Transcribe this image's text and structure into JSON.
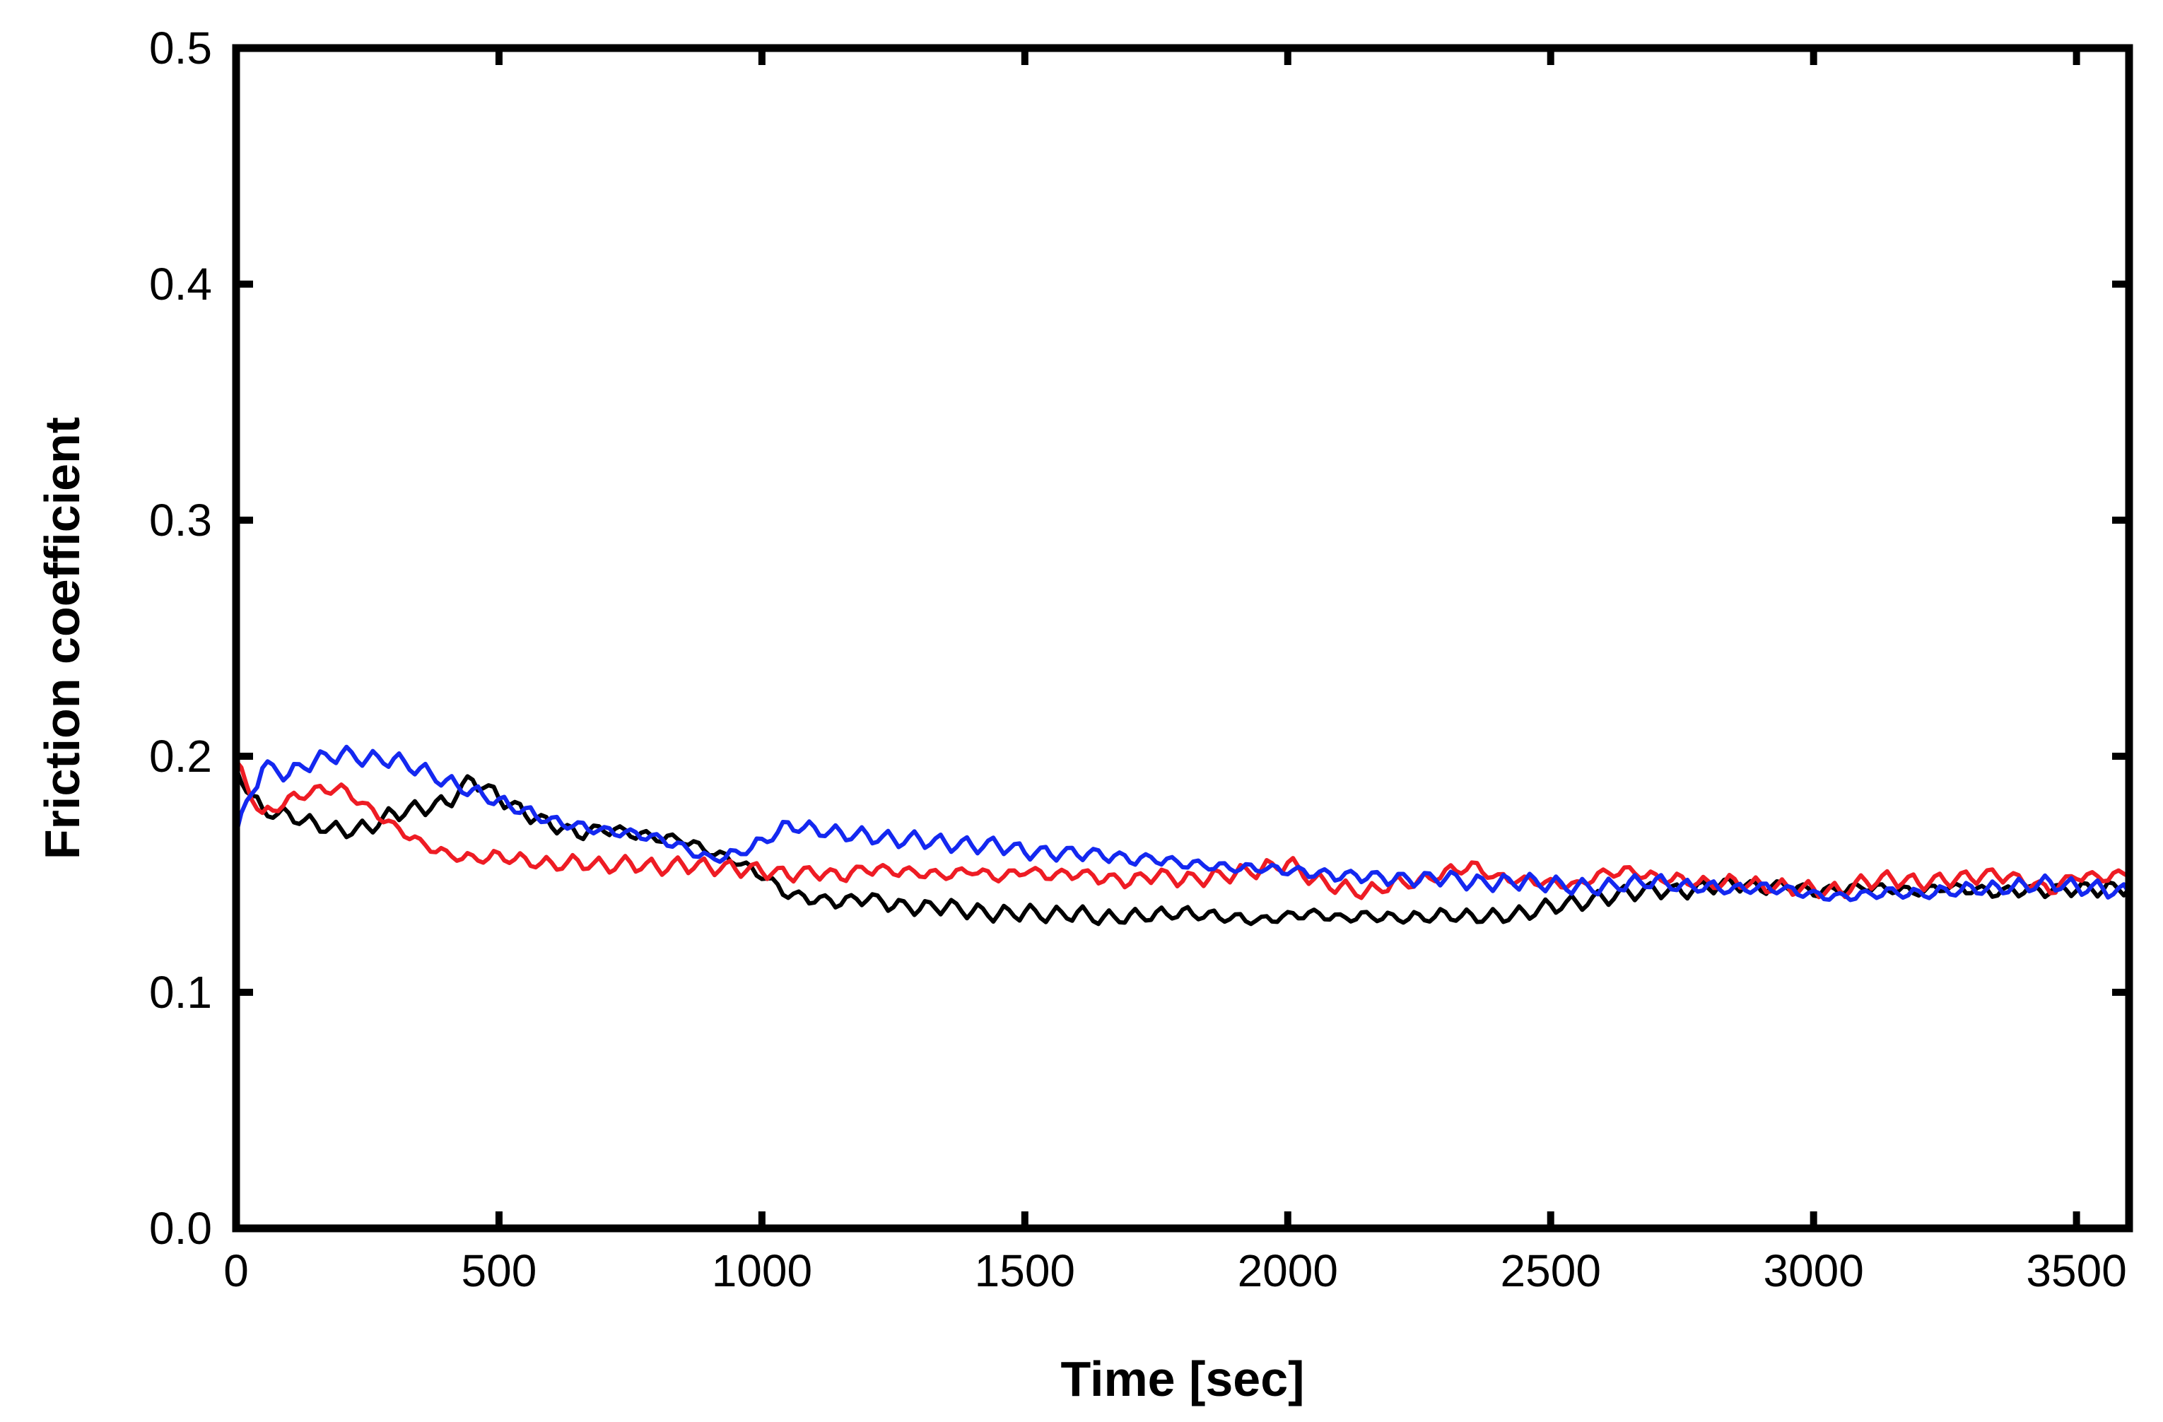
{
  "chart_data": {
    "type": "line",
    "title": "",
    "xlabel": "Time [sec]",
    "ylabel": "Friction coefficient",
    "xlim": [
      0,
      3600
    ],
    "ylim": [
      0,
      0.5
    ],
    "xticks": [
      0,
      500,
      1000,
      1500,
      2000,
      2500,
      3000,
      3500
    ],
    "xtick_labels": [
      "0",
      "500",
      "1000",
      "1500",
      "2000",
      "2500",
      "3000",
      "3500"
    ],
    "yticks": [
      0,
      0.1,
      0.2,
      0.3,
      0.4,
      0.5
    ],
    "ytick_labels": [
      "0.0",
      "0.1",
      "0.2",
      "0.3",
      "0.4",
      "0.5"
    ],
    "grid": false,
    "legend": "none",
    "x": [
      0,
      50,
      100,
      150,
      200,
      250,
      300,
      350,
      400,
      450,
      500,
      550,
      600,
      650,
      700,
      750,
      800,
      850,
      900,
      950,
      1000,
      1050,
      1100,
      1150,
      1200,
      1250,
      1300,
      1350,
      1400,
      1450,
      1500,
      1550,
      1600,
      1650,
      1700,
      1750,
      1800,
      1850,
      1900,
      1950,
      2000,
      2050,
      2100,
      2150,
      2200,
      2250,
      2300,
      2350,
      2400,
      2450,
      2500,
      2550,
      2600,
      2650,
      2700,
      2750,
      2800,
      2850,
      2900,
      2950,
      3000,
      3050,
      3100,
      3150,
      3200,
      3250,
      3300,
      3350,
      3400,
      3450,
      3500,
      3550,
      3600
    ],
    "series": [
      {
        "name": "black",
        "color": "#000000",
        "values": [
          0.195,
          0.178,
          0.176,
          0.172,
          0.169,
          0.17,
          0.176,
          0.178,
          0.18,
          0.19,
          0.182,
          0.175,
          0.17,
          0.166,
          0.168,
          0.166,
          0.164,
          0.163,
          0.158,
          0.154,
          0.148,
          0.14,
          0.138,
          0.137,
          0.139,
          0.136,
          0.135,
          0.136,
          0.134,
          0.133,
          0.134,
          0.133,
          0.134,
          0.132,
          0.133,
          0.134,
          0.135,
          0.134,
          0.133,
          0.132,
          0.134,
          0.135,
          0.133,
          0.134,
          0.133,
          0.133,
          0.134,
          0.133,
          0.133,
          0.134,
          0.137,
          0.138,
          0.14,
          0.142,
          0.143,
          0.142,
          0.144,
          0.145,
          0.143,
          0.144,
          0.141,
          0.142,
          0.143,
          0.142,
          0.141,
          0.143,
          0.142,
          0.141,
          0.142,
          0.142,
          0.143,
          0.143,
          0.144
        ]
      },
      {
        "name": "red",
        "color": "#ee1c24",
        "values": [
          0.198,
          0.176,
          0.183,
          0.187,
          0.188,
          0.18,
          0.172,
          0.165,
          0.16,
          0.158,
          0.159,
          0.157,
          0.155,
          0.156,
          0.154,
          0.155,
          0.153,
          0.154,
          0.153,
          0.152,
          0.151,
          0.149,
          0.15,
          0.148,
          0.151,
          0.15,
          0.149,
          0.148,
          0.15,
          0.147,
          0.15,
          0.148,
          0.149,
          0.147,
          0.146,
          0.149,
          0.147,
          0.148,
          0.15,
          0.152,
          0.155,
          0.148,
          0.145,
          0.143,
          0.147,
          0.148,
          0.152,
          0.155,
          0.15,
          0.149,
          0.148,
          0.147,
          0.152,
          0.153,
          0.15,
          0.149,
          0.147,
          0.148,
          0.146,
          0.145,
          0.144,
          0.143,
          0.147,
          0.148,
          0.146,
          0.147,
          0.148,
          0.149,
          0.146,
          0.142,
          0.148,
          0.147,
          0.149
        ]
      },
      {
        "name": "blue",
        "color": "#1428f0",
        "values": [
          0.167,
          0.195,
          0.192,
          0.198,
          0.201,
          0.199,
          0.199,
          0.195,
          0.19,
          0.186,
          0.182,
          0.178,
          0.174,
          0.172,
          0.17,
          0.169,
          0.167,
          0.163,
          0.158,
          0.16,
          0.165,
          0.172,
          0.17,
          0.168,
          0.167,
          0.165,
          0.165,
          0.163,
          0.162,
          0.162,
          0.159,
          0.158,
          0.158,
          0.157,
          0.155,
          0.155,
          0.153,
          0.152,
          0.151,
          0.151,
          0.15,
          0.149,
          0.148,
          0.148,
          0.147,
          0.147,
          0.148,
          0.146,
          0.146,
          0.147,
          0.146,
          0.145,
          0.145,
          0.147,
          0.148,
          0.146,
          0.146,
          0.145,
          0.146,
          0.145,
          0.143,
          0.142,
          0.143,
          0.144,
          0.143,
          0.144,
          0.145,
          0.145,
          0.146,
          0.147,
          0.145,
          0.144,
          0.142
        ]
      }
    ]
  }
}
